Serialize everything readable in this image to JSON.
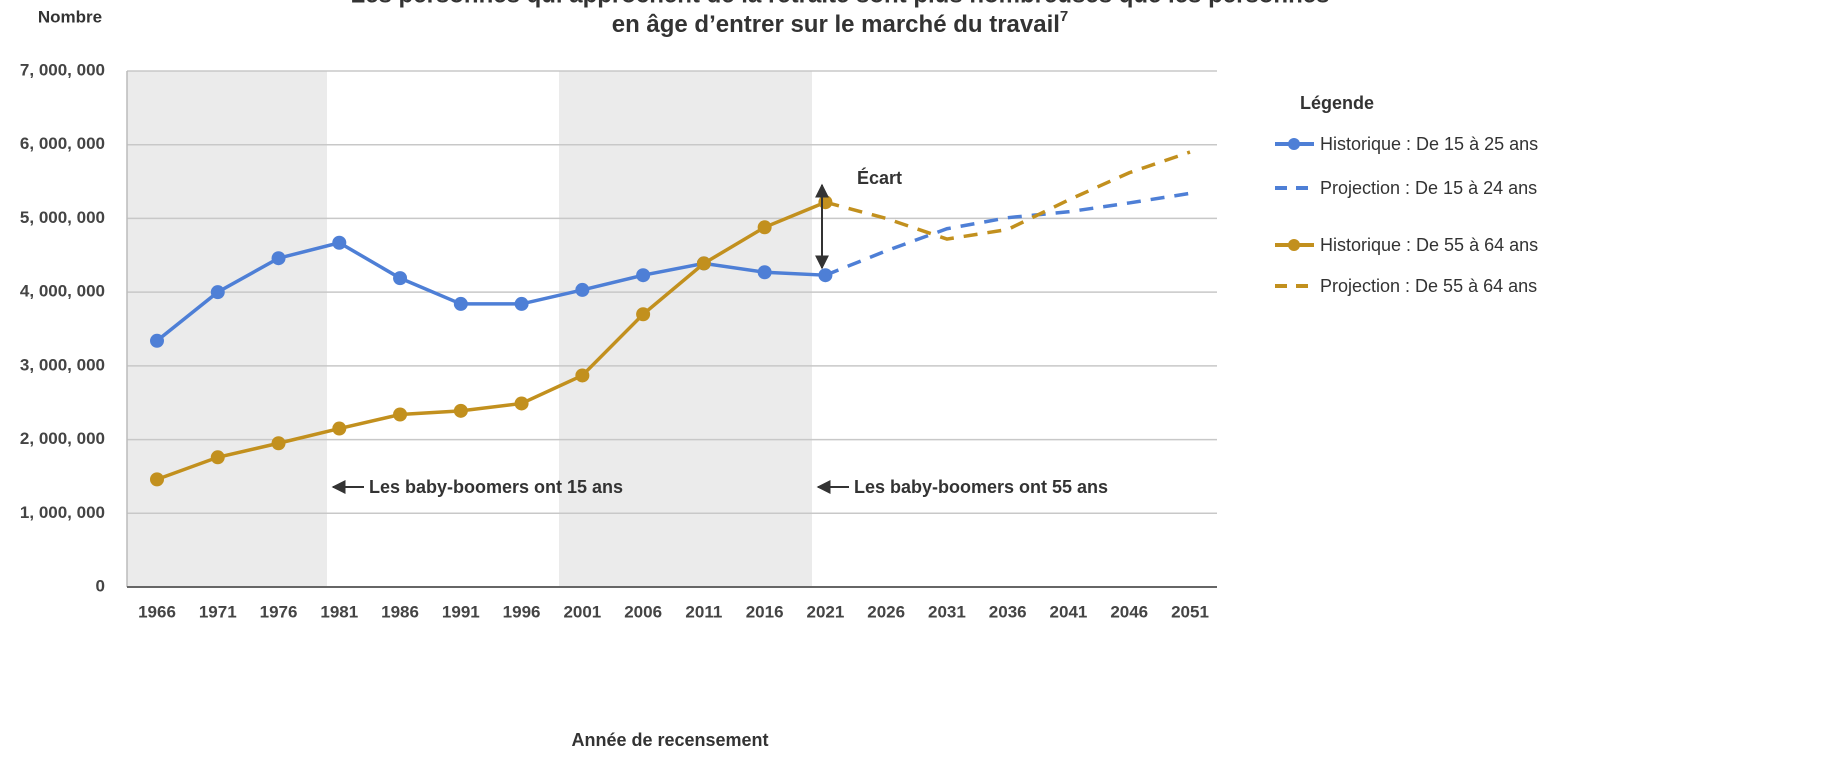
{
  "chart_data": {
    "type": "line",
    "title_lines": [
      "Les personnes qui approchent de la retraite sont plus nombreuses que les personnes",
      "en âge d’entrer sur le marché du travail"
    ],
    "title_note": "7",
    "y_label": "Nombre",
    "x_label": "Année de recensement",
    "legend_title": "Légende",
    "legend_position": "right",
    "annotations": [
      "Les baby-boomers ont 15 ans",
      "Les baby-boomers ont 55 ans",
      "Écart"
    ],
    "categories": [
      "1966",
      "1971",
      "1976",
      "1981",
      "1986",
      "1991",
      "1996",
      "2001",
      "2006",
      "2011",
      "2016",
      "2021",
      "2026",
      "2031",
      "2036",
      "2041",
      "2046",
      "2051"
    ],
    "series": [
      {
        "name": "Historique : De 15 à 25 ans",
        "color": "#4e7fd6",
        "dashed": false,
        "markers": true,
        "values": [
          3340000,
          4000000,
          4460000,
          4670000,
          4190000,
          3840000,
          3840000,
          4030000,
          4230000,
          4390000,
          4270000,
          4230000,
          null,
          null,
          null,
          null,
          null,
          null
        ]
      },
      {
        "name": "Projection : De 15 à 24 ans",
        "color": "#4e7fd6",
        "dashed": true,
        "markers": false,
        "values": [
          null,
          null,
          null,
          null,
          null,
          null,
          null,
          null,
          null,
          null,
          null,
          4230000,
          4560000,
          4860000,
          5010000,
          5090000,
          5210000,
          5340000
        ]
      },
      {
        "name": "Historique : De 55 à 64 ans",
        "color": "#c2901e",
        "dashed": false,
        "markers": true,
        "values": [
          1460000,
          1760000,
          1950000,
          2150000,
          2340000,
          2390000,
          2490000,
          2870000,
          3700000,
          4390000,
          4880000,
          5220000,
          null,
          null,
          null,
          null,
          null,
          null
        ]
      },
      {
        "name": "Projection : De 55 à 64 ans",
        "color": "#c2901e",
        "dashed": true,
        "markers": false,
        "values": [
          null,
          null,
          null,
          null,
          null,
          null,
          null,
          null,
          null,
          null,
          null,
          5220000,
          5000000,
          4720000,
          4850000,
          5250000,
          5620000,
          5900000
        ]
      }
    ],
    "ylim": [
      0,
      7000000
    ],
    "yticks": [
      0,
      {
        "value": 1000000,
        "label": "1, 000, 000"
      },
      {
        "value": 2000000,
        "label": "2, 000, 000"
      },
      {
        "value": 3000000,
        "label": "3, 000, 000"
      },
      {
        "value": 4000000,
        "label": "4, 000, 000"
      },
      {
        "value": 5000000,
        "label": "5, 000, 000"
      },
      {
        "value": 6000000,
        "label": "6, 000, 000"
      },
      {
        "value": 7000000,
        "label": "7, 000, 000"
      }
    ],
    "grid": true
  }
}
